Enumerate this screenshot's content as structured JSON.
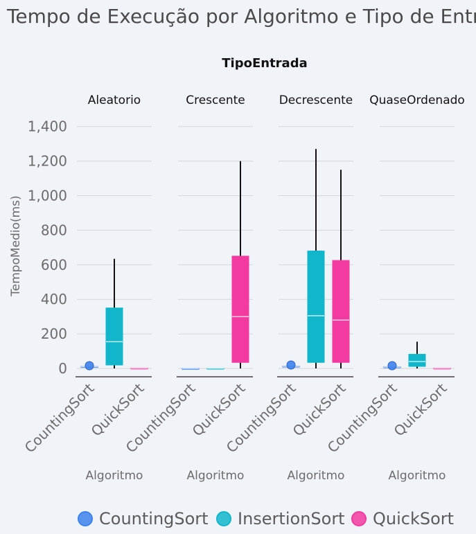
{
  "chart_data": {
    "type": "boxplot",
    "title": "Tempo de Execução por Algoritmo e Tipo de Entrada",
    "facet_header": "TipoEntrada",
    "facets": [
      "Aleatorio",
      "Crescente",
      "Decrescente",
      "QuaseOrdenado"
    ],
    "xlabel": "Algoritmo",
    "ylabel": "TempoMedio(ms)",
    "x_categories": [
      "CountingSort",
      "InsertionSort",
      "QuickSort"
    ],
    "x_tick_labels": [
      "CountingSort",
      "QuickSort"
    ],
    "y_ticks": [
      0,
      200,
      400,
      600,
      800,
      1000,
      1200,
      1400
    ],
    "y_tick_labels": [
      "0",
      "200",
      "400",
      "600",
      "800",
      "1,000",
      "1,200",
      "1,400"
    ],
    "ylim": [
      -50,
      1450
    ],
    "legend": {
      "placement": "bottom",
      "entries": [
        "CountingSort",
        "InsertionSort",
        "QuickSort"
      ]
    },
    "colors": {
      "CountingSort": "#3d82ec",
      "InsertionSort": "#12b6cb",
      "QuickSort": "#f23aa0"
    },
    "boxes": [
      {
        "facet": "Aleatorio",
        "algorithm": "CountingSort",
        "min": 5,
        "q1": 8,
        "median": 10,
        "q3": 12,
        "max": 15,
        "outliers": [
          8
        ]
      },
      {
        "facet": "Aleatorio",
        "algorithm": "InsertionSort",
        "min": 0,
        "q1": 20,
        "median": 155,
        "q3": 350,
        "max": 635
      },
      {
        "facet": "Aleatorio",
        "algorithm": "QuickSort",
        "min": 0,
        "q1": 1,
        "median": 2,
        "q3": 3,
        "max": 4
      },
      {
        "facet": "Crescente",
        "algorithm": "CountingSort",
        "min": 0,
        "q1": 0,
        "median": 0,
        "q3": 1,
        "max": 1
      },
      {
        "facet": "Crescente",
        "algorithm": "InsertionSort",
        "min": 0,
        "q1": 0,
        "median": 1,
        "q3": 2,
        "max": 3
      },
      {
        "facet": "Crescente",
        "algorithm": "QuickSort",
        "min": 0,
        "q1": 35,
        "median": 300,
        "q3": 650,
        "max": 1200
      },
      {
        "facet": "Decrescente",
        "algorithm": "CountingSort",
        "min": 8,
        "q1": 10,
        "median": 12,
        "q3": 14,
        "max": 16,
        "outliers": [
          12
        ]
      },
      {
        "facet": "Decrescente",
        "algorithm": "InsertionSort",
        "min": 0,
        "q1": 35,
        "median": 305,
        "q3": 680,
        "max": 1270
      },
      {
        "facet": "Decrescente",
        "algorithm": "QuickSort",
        "min": 0,
        "q1": 35,
        "median": 280,
        "q3": 625,
        "max": 1150
      },
      {
        "facet": "QuaseOrdenado",
        "algorithm": "CountingSort",
        "min": 5,
        "q1": 7,
        "median": 8,
        "q3": 10,
        "max": 12,
        "outliers": [
          8
        ]
      },
      {
        "facet": "QuaseOrdenado",
        "algorithm": "InsertionSort",
        "min": 0,
        "q1": 12,
        "median": 40,
        "q3": 82,
        "max": 155
      },
      {
        "facet": "QuaseOrdenado",
        "algorithm": "QuickSort",
        "min": 0,
        "q1": 1,
        "median": 2,
        "q3": 3,
        "max": 4
      }
    ]
  }
}
